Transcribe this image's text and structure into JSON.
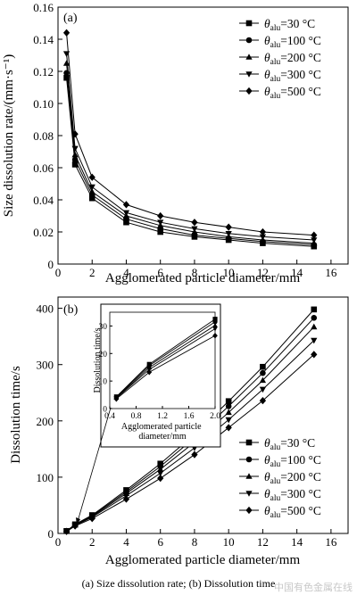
{
  "caption": "(a)   Size  dissolution rate; (b) Dissolution time",
  "watermark": "中国有色金属在线",
  "legend": {
    "symbol": "θ",
    "subscript": "alu",
    "entries": [
      "=30 °C",
      "=100 °C",
      "=200 °C",
      "=300 °C",
      "=500 °C"
    ]
  },
  "chart_data": [
    {
      "type": "line",
      "panel_label": "(a)",
      "xlabel": "Agglomerated particle diameter/mm",
      "ylabel": "Size dissolution rate/(mm·s⁻¹)",
      "xlim": [
        0,
        17
      ],
      "ylim": [
        0,
        0.16
      ],
      "xticks": [
        0,
        2,
        4,
        6,
        8,
        10,
        12,
        14,
        16
      ],
      "yticks": [
        0,
        0.02,
        0.04,
        0.06,
        0.08,
        0.1,
        0.12,
        0.14,
        0.16
      ],
      "ytick_labels": [
        "0",
        "0.02",
        "0.04",
        "0.06",
        "0.08",
        "0.10",
        "0.12",
        "0.14",
        "0.16"
      ],
      "x": [
        0.5,
        1,
        2,
        4,
        6,
        8,
        10,
        12,
        15
      ],
      "series": [
        {
          "name": "θalu=30 °C",
          "marker": "square",
          "values": [
            0.116,
            0.062,
            0.041,
            0.026,
            0.02,
            0.017,
            0.015,
            0.013,
            0.011
          ]
        },
        {
          "name": "θalu=100 °C",
          "marker": "circle",
          "values": [
            0.119,
            0.065,
            0.043,
            0.028,
            0.022,
            0.018,
            0.016,
            0.014,
            0.012
          ]
        },
        {
          "name": "θalu=200 °C",
          "marker": "triangle-up",
          "values": [
            0.125,
            0.068,
            0.045,
            0.03,
            0.024,
            0.02,
            0.017,
            0.015,
            0.013
          ]
        },
        {
          "name": "θalu=300 °C",
          "marker": "triangle-down",
          "values": [
            0.131,
            0.072,
            0.048,
            0.032,
            0.026,
            0.022,
            0.019,
            0.017,
            0.015
          ]
        },
        {
          "name": "θalu=500 °C",
          "marker": "diamond",
          "values": [
            0.144,
            0.081,
            0.054,
            0.037,
            0.03,
            0.026,
            0.023,
            0.02,
            0.018
          ]
        }
      ]
    },
    {
      "type": "line",
      "panel_label": "(b)",
      "xlabel": "Agglomerated particle diameter/mm",
      "ylabel": "Dissolution time/s",
      "xlim": [
        0,
        17
      ],
      "ylim": [
        0,
        420
      ],
      "xticks": [
        0,
        2,
        4,
        6,
        8,
        10,
        12,
        14,
        16
      ],
      "yticks": [
        0,
        100,
        200,
        300,
        400
      ],
      "x": [
        0.5,
        1,
        2,
        4,
        6,
        8,
        10,
        12,
        15
      ],
      "series": [
        {
          "name": "θalu=30 °C",
          "marker": "square",
          "values": [
            4.3,
            16.1,
            32.5,
            77,
            124,
            176,
            235,
            296,
            398
          ]
        },
        {
          "name": "θalu=100 °C",
          "marker": "circle",
          "values": [
            4.2,
            15.6,
            31.5,
            74,
            119,
            170,
            226,
            285,
            383
          ]
        },
        {
          "name": "θalu=200 °C",
          "marker": "triangle-up",
          "values": [
            4.0,
            14.9,
            30.2,
            71,
            114,
            162,
            215,
            272,
            367
          ]
        },
        {
          "name": "θalu=300 °C",
          "marker": "triangle-down",
          "values": [
            3.8,
            14.2,
            29.0,
            67,
            107,
            152,
            202,
            256,
            343
          ]
        },
        {
          "name": "θalu=500 °C",
          "marker": "diamond",
          "values": [
            3.5,
            13.2,
            26.5,
            61,
            98,
            140,
            188,
            236,
            318
          ]
        }
      ],
      "inset": {
        "xlabel": "Agglomerated particle diameter/mm",
        "ylabel": "Dissolution time/s",
        "xlim": [
          0.4,
          2.0
        ],
        "ylim": [
          0,
          35
        ],
        "xticks": [
          0.4,
          0.8,
          1.2,
          1.6,
          2.0
        ],
        "xtick_labels": [
          "0.4",
          "0.8",
          "1.2",
          "1.6",
          "2.0"
        ],
        "yticks": [
          0,
          10,
          20,
          30
        ],
        "x": [
          0.5,
          1,
          2
        ],
        "series": [
          {
            "name": "θalu=30 °C",
            "marker": "square",
            "values": [
              4.3,
              16.1,
              32.5
            ]
          },
          {
            "name": "θalu=100 °C",
            "marker": "circle",
            "values": [
              4.2,
              15.6,
              31.5
            ]
          },
          {
            "name": "θalu=200 °C",
            "marker": "triangle-up",
            "values": [
              4.0,
              14.9,
              30.2
            ]
          },
          {
            "name": "θalu=300 °C",
            "marker": "triangle-down",
            "values": [
              3.8,
              14.2,
              29.0
            ]
          },
          {
            "name": "θalu=500 °C",
            "marker": "diamond",
            "values": [
              3.5,
              13.2,
              26.5
            ]
          }
        ]
      }
    }
  ]
}
